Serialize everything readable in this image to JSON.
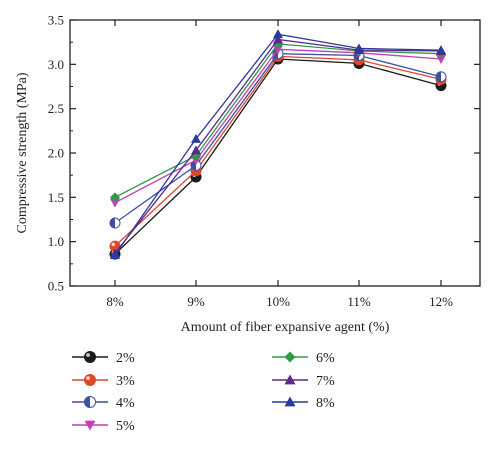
{
  "chart_data": {
    "type": "line",
    "xlabel": "Amount of fiber expansive agent (%)",
    "ylabel": "Compressive strength (MPa)",
    "categories": [
      "8%",
      "9%",
      "10%",
      "11%",
      "12%"
    ],
    "ylim": [
      0.5,
      3.5
    ],
    "yticks": [
      "0.5",
      "1.0",
      "1.5",
      "2.0",
      "2.5",
      "3.0",
      "3.5"
    ],
    "grid": false,
    "legend_position": "bottom",
    "series": [
      {
        "name": "2%",
        "color": "#1a1a1a",
        "marker": "circle-black",
        "values": [
          0.86,
          1.73,
          3.06,
          3.01,
          2.76
        ]
      },
      {
        "name": "3%",
        "color": "#e2452b",
        "marker": "circle-red",
        "values": [
          0.95,
          1.8,
          3.09,
          3.05,
          2.83
        ]
      },
      {
        "name": "4%",
        "color": "#3f4fa8",
        "marker": "circle-half-blue",
        "values": [
          1.21,
          1.86,
          3.12,
          3.1,
          2.86
        ]
      },
      {
        "name": "5%",
        "color": "#c43fb6",
        "marker": "triangle-down-magenta",
        "values": [
          1.44,
          1.92,
          3.17,
          3.13,
          3.06
        ]
      },
      {
        "name": "6%",
        "color": "#2f9a4a",
        "marker": "diamond-green",
        "values": [
          1.5,
          1.97,
          3.23,
          3.15,
          3.12
        ]
      },
      {
        "name": "7%",
        "color": "#5b2a8c",
        "marker": "triangle-up-purple",
        "values": [
          0.87,
          2.03,
          3.28,
          3.16,
          3.15
        ]
      },
      {
        "name": "8%",
        "color": "#2c3a9c",
        "marker": "triangle-up-navy",
        "values": [
          0.85,
          2.16,
          3.34,
          3.18,
          3.16
        ]
      }
    ]
  }
}
